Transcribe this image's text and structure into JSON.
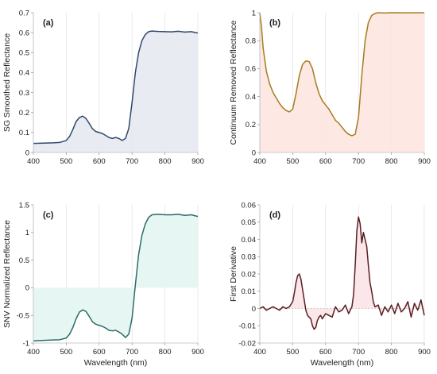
{
  "figure": {
    "shared_xlabel": "Wavelength (nm)"
  },
  "chart_data": [
    {
      "type": "line",
      "panel_label": "(a)",
      "ylabel": "SG Smoothed Reflectance",
      "xlabel": "",
      "xlim": [
        400,
        900
      ],
      "ylim": [
        0,
        0.7
      ],
      "xticks": [
        400,
        500,
        600,
        700,
        800,
        900
      ],
      "yticks": [
        0,
        0.1,
        0.2,
        0.3,
        0.4,
        0.5,
        0.6,
        0.7
      ],
      "grid": "vertical",
      "line_color": "#2f4a6e",
      "fill_color": "#e6e9f0",
      "fill_to": 0,
      "x": [
        400,
        420,
        440,
        460,
        480,
        500,
        510,
        520,
        530,
        540,
        550,
        560,
        570,
        580,
        590,
        600,
        610,
        620,
        630,
        640,
        650,
        660,
        670,
        680,
        690,
        700,
        710,
        720,
        730,
        740,
        750,
        760,
        780,
        800,
        820,
        840,
        860,
        880,
        900
      ],
      "y": [
        0.045,
        0.046,
        0.047,
        0.048,
        0.05,
        0.06,
        0.08,
        0.115,
        0.155,
        0.175,
        0.182,
        0.17,
        0.145,
        0.118,
        0.105,
        0.1,
        0.095,
        0.085,
        0.075,
        0.07,
        0.075,
        0.07,
        0.06,
        0.07,
        0.12,
        0.25,
        0.4,
        0.5,
        0.56,
        0.59,
        0.605,
        0.608,
        0.606,
        0.605,
        0.604,
        0.607,
        0.603,
        0.605,
        0.598
      ]
    },
    {
      "type": "line",
      "panel_label": "(b)",
      "ylabel": "Continuum Removed Reflectance",
      "xlabel": "",
      "xlim": [
        400,
        900
      ],
      "ylim": [
        0,
        1
      ],
      "xticks": [
        400,
        500,
        600,
        700,
        800,
        900
      ],
      "yticks": [
        0,
        0.2,
        0.4,
        0.6,
        0.8,
        1
      ],
      "grid": "vertical",
      "line_color": "#a67c1e",
      "fill_color": "#fde6e0",
      "fill_to": 0,
      "x": [
        400,
        405,
        410,
        420,
        430,
        440,
        450,
        460,
        470,
        480,
        490,
        500,
        510,
        520,
        530,
        540,
        550,
        560,
        570,
        580,
        590,
        600,
        610,
        620,
        630,
        640,
        650,
        660,
        670,
        680,
        690,
        700,
        710,
        720,
        730,
        740,
        750,
        760,
        780,
        800,
        850,
        900
      ],
      "y": [
        1.0,
        0.9,
        0.75,
        0.58,
        0.49,
        0.43,
        0.39,
        0.35,
        0.32,
        0.3,
        0.29,
        0.31,
        0.42,
        0.55,
        0.63,
        0.655,
        0.65,
        0.6,
        0.5,
        0.42,
        0.37,
        0.34,
        0.31,
        0.27,
        0.23,
        0.21,
        0.18,
        0.15,
        0.13,
        0.12,
        0.13,
        0.25,
        0.55,
        0.8,
        0.93,
        0.98,
        0.995,
        1.0,
        0.998,
        1.0,
        0.999,
        1.0
      ]
    },
    {
      "type": "line",
      "panel_label": "(c)",
      "ylabel": "SNV Normalized Reflectance",
      "xlabel": "Wavelength (nm)",
      "xlim": [
        400,
        900
      ],
      "ylim": [
        -1,
        1.5
      ],
      "xticks": [
        400,
        500,
        600,
        700,
        800,
        900
      ],
      "yticks": [
        -1,
        -0.5,
        0,
        0.5,
        1,
        1.5
      ],
      "grid": "vertical",
      "line_color": "#2e6b6a",
      "fill_color": "#e2f5f2",
      "fill_to": 0,
      "x": [
        400,
        420,
        440,
        460,
        480,
        500,
        510,
        520,
        530,
        540,
        550,
        560,
        570,
        580,
        590,
        600,
        610,
        620,
        630,
        640,
        650,
        660,
        670,
        680,
        690,
        700,
        710,
        720,
        730,
        740,
        750,
        760,
        780,
        800,
        820,
        840,
        860,
        880,
        900
      ],
      "y": [
        -0.96,
        -0.955,
        -0.95,
        -0.945,
        -0.94,
        -0.91,
        -0.84,
        -0.72,
        -0.56,
        -0.44,
        -0.4,
        -0.43,
        -0.52,
        -0.62,
        -0.66,
        -0.68,
        -0.7,
        -0.73,
        -0.77,
        -0.78,
        -0.77,
        -0.8,
        -0.84,
        -0.9,
        -0.84,
        -0.55,
        0.05,
        0.6,
        0.95,
        1.15,
        1.27,
        1.32,
        1.33,
        1.32,
        1.32,
        1.33,
        1.31,
        1.32,
        1.29
      ]
    },
    {
      "type": "line",
      "panel_label": "(d)",
      "ylabel": "First Derivative",
      "xlabel": "Wavelength (nm)",
      "xlim": [
        400,
        900
      ],
      "ylim": [
        -0.02,
        0.06
      ],
      "xticks": [
        400,
        500,
        600,
        700,
        800,
        900
      ],
      "yticks": [
        -0.02,
        -0.01,
        0,
        0.01,
        0.02,
        0.03,
        0.04,
        0.05,
        0.06
      ],
      "grid": "vertical",
      "zero_line": true,
      "line_color": "#5a1f22",
      "fill_color": "#fbe3e8",
      "fill_to": 0,
      "x": [
        400,
        410,
        420,
        430,
        440,
        450,
        460,
        470,
        480,
        490,
        500,
        505,
        510,
        515,
        520,
        525,
        530,
        535,
        540,
        545,
        550,
        555,
        560,
        565,
        570,
        575,
        580,
        585,
        590,
        600,
        610,
        620,
        630,
        640,
        650,
        660,
        670,
        680,
        685,
        690,
        695,
        700,
        705,
        710,
        715,
        720,
        725,
        730,
        735,
        740,
        745,
        750,
        760,
        770,
        780,
        790,
        800,
        810,
        820,
        830,
        840,
        850,
        860,
        870,
        880,
        890,
        900
      ],
      "y": [
        0.0,
        0.001,
        -0.001,
        0.0,
        0.001,
        0.0,
        -0.001,
        0.001,
        0.0,
        0.001,
        0.004,
        0.009,
        0.015,
        0.019,
        0.02,
        0.017,
        0.011,
        0.005,
        -0.001,
        -0.004,
        -0.005,
        -0.006,
        -0.01,
        -0.012,
        -0.011,
        -0.007,
        -0.005,
        -0.004,
        -0.006,
        -0.003,
        -0.004,
        -0.005,
        0.001,
        -0.002,
        -0.001,
        0.002,
        -0.003,
        0.001,
        0.008,
        0.025,
        0.045,
        0.053,
        0.049,
        0.038,
        0.044,
        0.04,
        0.036,
        0.025,
        0.015,
        0.01,
        0.004,
        0.001,
        0.002,
        -0.004,
        0.001,
        -0.002,
        0.002,
        -0.003,
        0.003,
        -0.002,
        0.0,
        0.004,
        -0.005,
        0.003,
        -0.001,
        0.005,
        -0.004
      ]
    }
  ]
}
